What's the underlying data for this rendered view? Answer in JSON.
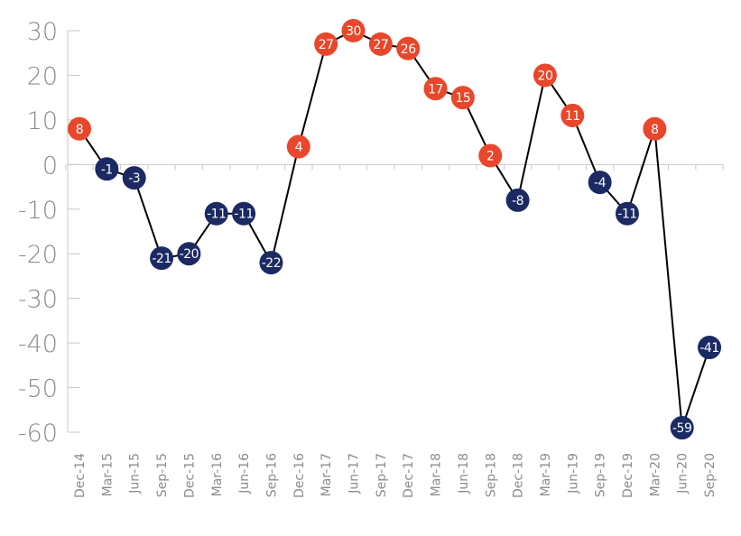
{
  "chart_data": {
    "type": "line",
    "title": "",
    "xlabel": "",
    "ylabel": "",
    "ylim": [
      -60,
      30
    ],
    "yticks": [
      "30",
      "20",
      "10",
      "0",
      "-10",
      "-20",
      "-30",
      "-40",
      "-50",
      "-60"
    ],
    "grid": false,
    "categories": [
      "Dec-14",
      "Mar-15",
      "Jun-15",
      "Sep-15",
      "Dec-15",
      "Mar-16",
      "Jun-16",
      "Sep-16",
      "Dec-16",
      "Mar-17",
      "Jun-17",
      "Sep-17",
      "Dec-17",
      "Mar-18",
      "Jun-18",
      "Sep-18",
      "Dec-18",
      "Mar-19",
      "Jun-19",
      "Sep-19",
      "Dec-19",
      "Mar-20",
      "Jun-20",
      "Sep-20"
    ],
    "series": [
      {
        "values": [
          8,
          -1,
          -3,
          -21,
          -20,
          -11,
          -11,
          -22,
          4,
          27,
          30,
          27,
          26,
          17,
          15,
          2,
          -8,
          20,
          11,
          -4,
          -11,
          8,
          -59,
          -41
        ]
      }
    ],
    "marker_labels": [
      "8",
      "-1",
      "-3",
      "-21",
      "-20",
      "-11",
      "-11",
      "-22",
      "4",
      "27",
      "30",
      "27",
      "26",
      "17",
      "15",
      "2",
      "-8",
      "20",
      "11",
      "-4",
      "-11",
      "8",
      "-59",
      "-41"
    ],
    "colors": {
      "positive": "#e8472b",
      "negative": "#1b2a63",
      "line": "#000000",
      "axis": "#c8c8c8",
      "text": "#8c8c8c"
    }
  }
}
